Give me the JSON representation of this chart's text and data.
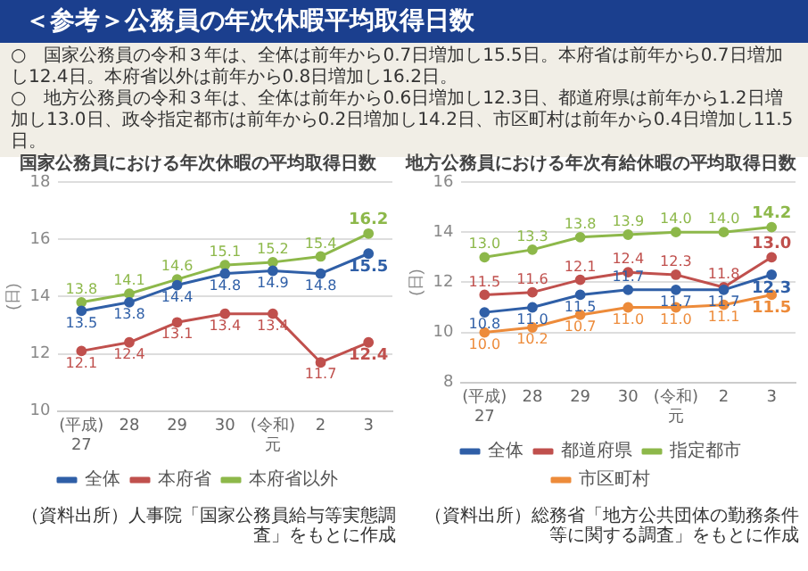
{
  "chart_data": [
    {
      "type": "other",
      "title": "＜参考＞公務員の年次休暇平均取得日数",
      "annotations": [
        "○　国家公務員の令和３年は、全体は前年から0.7日増加し15.5日。本府省は前年から0.7日増加し12.4日。本府省以外は前年から0.8日増加し16.2日。",
        "○　地方公務員の令和３年は、全体は前年から0.6日増加し12.3日、都道府県は前年から1.2日増加し13.0日、政令指定都市は前年から0.2日増加し14.2日、市区町村は前年から0.4日増加し11.5日。"
      ]
    },
    {
      "type": "line",
      "title": "国家公務員における年次休暇の平均取得日数",
      "ylabel": "(日)",
      "categories": [
        "(平成)\n27",
        "28",
        "29",
        "30",
        "(令和)\n元",
        "2",
        "3"
      ],
      "series": [
        {
          "name": "全体",
          "color": "#2f5fa7",
          "values": [
            13.5,
            13.8,
            14.4,
            14.8,
            14.9,
            14.8,
            15.5
          ],
          "value_labels": [
            "13.5",
            "13.8",
            "14.4",
            "14.8",
            "14.9",
            "14.8",
            "15.5"
          ]
        },
        {
          "name": "本府省",
          "color": "#c0504d",
          "values": [
            12.1,
            12.4,
            13.1,
            13.4,
            13.4,
            11.7,
            12.4
          ],
          "value_labels": [
            "12.1",
            "12.4",
            "13.1",
            "13.4",
            "13.4",
            "11.7",
            "12.4"
          ]
        },
        {
          "name": "本府省以外",
          "color": "#8db84a",
          "values": [
            13.8,
            14.1,
            14.6,
            15.1,
            15.2,
            15.4,
            16.2
          ],
          "value_labels": [
            "13.8",
            "14.1",
            "14.6",
            "15.1",
            "15.2",
            "15.4",
            "16.2"
          ]
        }
      ],
      "ylim": [
        10,
        18
      ],
      "yticks": [
        10,
        12,
        14,
        16,
        18
      ],
      "grid": "y",
      "legend": "bottom",
      "marker": "circle",
      "annotations": [
        "（資料出所）人事院「国家公務員給与等実態調査」をもとに作成"
      ]
    },
    {
      "type": "line",
      "title": "地方公務員における年次有給休暇の平均取得日数",
      "ylabel": "(日)",
      "categories": [
        "(平成)\n27",
        "28",
        "29",
        "30",
        "(令和)\n元",
        "2",
        "3"
      ],
      "series": [
        {
          "name": "全体",
          "color": "#2f5fa7",
          "values": [
            10.8,
            11.0,
            11.5,
            11.7,
            11.7,
            11.7,
            12.3
          ],
          "value_labels": [
            "10.8",
            "11.0",
            "11.5",
            "11.7",
            "11.7",
            "11.7",
            "12.3"
          ]
        },
        {
          "name": "都道府県",
          "color": "#c0504d",
          "values": [
            11.5,
            11.6,
            12.1,
            12.4,
            12.3,
            11.8,
            13.0
          ],
          "value_labels": [
            "11.5",
            "11.6",
            "12.1",
            "12.4",
            "12.3",
            "11.8",
            "13.0"
          ]
        },
        {
          "name": "指定都市",
          "color": "#8db84a",
          "values": [
            13.0,
            13.3,
            13.8,
            13.9,
            14.0,
            14.0,
            14.2
          ],
          "value_labels": [
            "13.0",
            "13.3",
            "13.8",
            "13.9",
            "14.0",
            "14.0",
            "14.2"
          ]
        },
        {
          "name": "市区町村",
          "color": "#ed8b3a",
          "values": [
            10.0,
            10.2,
            10.7,
            11.0,
            11.0,
            11.1,
            11.5
          ],
          "value_labels": [
            "10.0",
            "10.2",
            "10.7",
            "11.0",
            "11.0",
            "11.1",
            "11.5"
          ]
        }
      ],
      "ylim": [
        8,
        16
      ],
      "yticks": [
        8,
        10,
        12,
        14,
        16
      ],
      "grid": "y",
      "legend": "bottom",
      "marker": "circle",
      "annotations": [
        "（資料出所）総務省「地方公共団体の勤務条件等に関する調査」をもとに作成"
      ]
    }
  ]
}
